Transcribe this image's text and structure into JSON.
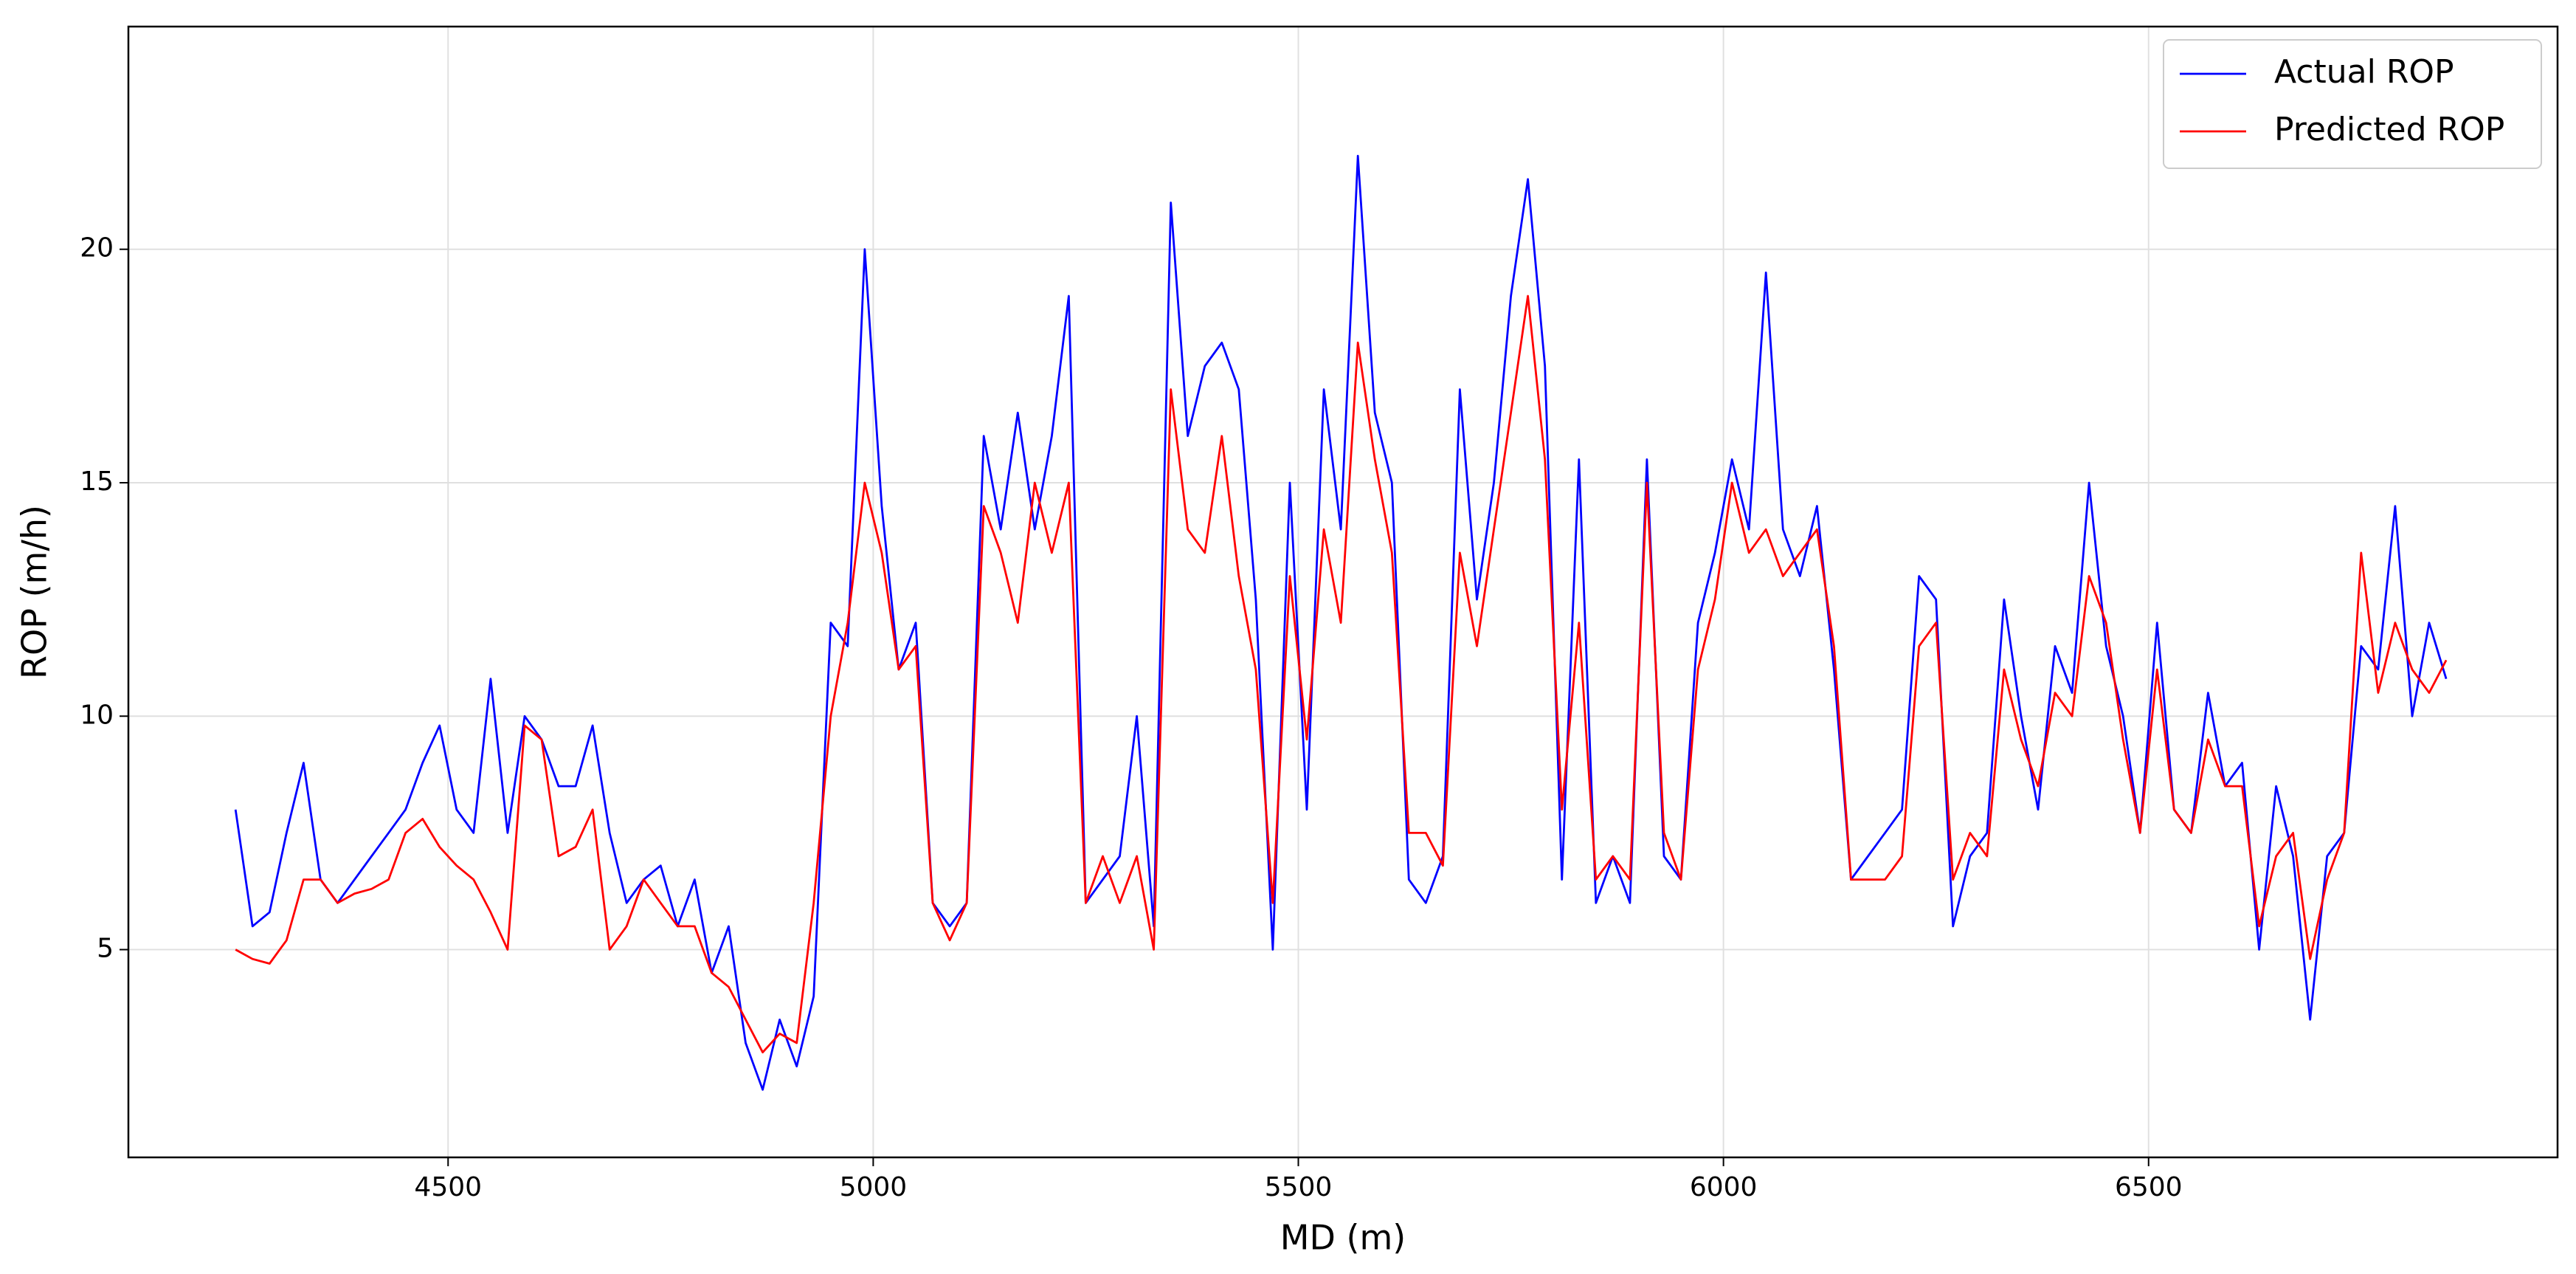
{
  "chart_data": {
    "type": "line",
    "xlabel": "MD (m)",
    "ylabel": "ROP (m/h)",
    "xlim": [
      4124,
      6981
    ],
    "ylim": [
      0.55,
      24.77
    ],
    "xticks": [
      4500,
      5000,
      5500,
      6000,
      6500
    ],
    "yticks": [
      5,
      10,
      15,
      20
    ],
    "grid": true,
    "legend": "upper right",
    "x": [
      4250,
      4270,
      4290,
      4310,
      4330,
      4350,
      4370,
      4390,
      4410,
      4430,
      4450,
      4470,
      4490,
      4510,
      4530,
      4550,
      4570,
      4590,
      4610,
      4630,
      4650,
      4670,
      4690,
      4710,
      4730,
      4750,
      4770,
      4790,
      4810,
      4830,
      4850,
      4870,
      4890,
      4910,
      4930,
      4950,
      4970,
      4990,
      5010,
      5030,
      5050,
      5070,
      5090,
      5110,
      5130,
      5150,
      5170,
      5190,
      5210,
      5230,
      5250,
      5270,
      5290,
      5310,
      5330,
      5350,
      5370,
      5390,
      5410,
      5430,
      5450,
      5470,
      5490,
      5510,
      5530,
      5550,
      5570,
      5590,
      5610,
      5630,
      5650,
      5670,
      5690,
      5710,
      5730,
      5750,
      5770,
      5790,
      5810,
      5830,
      5850,
      5870,
      5890,
      5910,
      5930,
      5950,
      5970,
      5990,
      6010,
      6030,
      6050,
      6070,
      6090,
      6110,
      6130,
      6150,
      6170,
      6190,
      6210,
      6230,
      6250,
      6270,
      6290,
      6310,
      6330,
      6350,
      6370,
      6390,
      6410,
      6430,
      6450,
      6470,
      6490,
      6510,
      6530,
      6550,
      6570,
      6590,
      6610,
      6630,
      6650,
      6670,
      6690,
      6710,
      6730,
      6750,
      6770,
      6790,
      6810,
      6830,
      6850
    ],
    "series": [
      {
        "name": "Actual ROP",
        "color": "#0000ff",
        "values": [
          8.0,
          5.5,
          5.8,
          7.5,
          9.0,
          6.5,
          6.0,
          6.5,
          7.0,
          7.5,
          8.0,
          9.0,
          9.8,
          8.0,
          7.5,
          10.8,
          7.5,
          10.0,
          9.5,
          8.5,
          8.5,
          9.8,
          7.5,
          6.0,
          6.5,
          6.8,
          5.5,
          6.5,
          4.5,
          5.5,
          3.0,
          2.0,
          3.5,
          2.5,
          4.0,
          12.0,
          11.5,
          20.0,
          14.5,
          11.0,
          12.0,
          6.0,
          5.5,
          6.0,
          16.0,
          14.0,
          16.5,
          14.0,
          16.0,
          19.0,
          6.0,
          6.5,
          7.0,
          10.0,
          5.5,
          21.0,
          16.0,
          17.5,
          18.0,
          17.0,
          12.5,
          5.0,
          15.0,
          8.0,
          17.0,
          14.0,
          22.0,
          16.5,
          15.0,
          6.5,
          6.0,
          7.0,
          17.0,
          12.5,
          15.0,
          19.0,
          21.5,
          17.5,
          6.5,
          15.5,
          6.0,
          7.0,
          6.0,
          15.5,
          7.0,
          6.5,
          12.0,
          13.5,
          15.5,
          14.0,
          19.5,
          14.0,
          13.0,
          14.5,
          11.0,
          6.5,
          7.0,
          7.5,
          8.0,
          13.0,
          12.5,
          5.5,
          7.0,
          7.5,
          12.5,
          10.0,
          8.0,
          11.5,
          10.5,
          15.0,
          11.5,
          10.0,
          7.5,
          12.0,
          8.0,
          7.5,
          10.5,
          8.5,
          9.0,
          5.0,
          8.5,
          7.0,
          3.5,
          7.0,
          7.5,
          11.5,
          11.0,
          14.5,
          10.0,
          12.0,
          10.8
        ]
      },
      {
        "name": "Predicted ROP",
        "color": "#ff0000",
        "values": [
          5.0,
          4.8,
          4.7,
          5.2,
          6.5,
          6.5,
          6.0,
          6.2,
          6.3,
          6.5,
          7.5,
          7.8,
          7.2,
          6.8,
          6.5,
          5.8,
          5.0,
          9.8,
          9.5,
          7.0,
          7.2,
          8.0,
          5.0,
          5.5,
          6.5,
          6.0,
          5.5,
          5.5,
          4.5,
          4.2,
          3.5,
          2.8,
          3.2,
          3.0,
          6.0,
          10.0,
          12.0,
          15.0,
          13.5,
          11.0,
          11.5,
          6.0,
          5.2,
          6.0,
          14.5,
          13.5,
          12.0,
          15.0,
          13.5,
          15.0,
          6.0,
          7.0,
          6.0,
          7.0,
          5.0,
          17.0,
          14.0,
          13.5,
          16.0,
          13.0,
          11.0,
          6.0,
          13.0,
          9.5,
          14.0,
          12.0,
          18.0,
          15.5,
          13.5,
          7.5,
          7.5,
          6.8,
          13.5,
          11.5,
          14.0,
          16.5,
          19.0,
          15.5,
          8.0,
          12.0,
          6.5,
          7.0,
          6.5,
          15.0,
          7.5,
          6.5,
          11.0,
          12.5,
          15.0,
          13.5,
          14.0,
          13.0,
          13.5,
          14.0,
          11.5,
          6.5,
          6.5,
          6.5,
          7.0,
          11.5,
          12.0,
          6.5,
          7.5,
          7.0,
          11.0,
          9.5,
          8.5,
          10.5,
          10.0,
          13.0,
          12.0,
          9.5,
          7.5,
          11.0,
          8.0,
          7.5,
          9.5,
          8.5,
          8.5,
          5.5,
          7.0,
          7.5,
          4.8,
          6.5,
          7.5,
          13.5,
          10.5,
          12.0,
          11.0,
          10.5,
          11.2
        ]
      }
    ]
  }
}
